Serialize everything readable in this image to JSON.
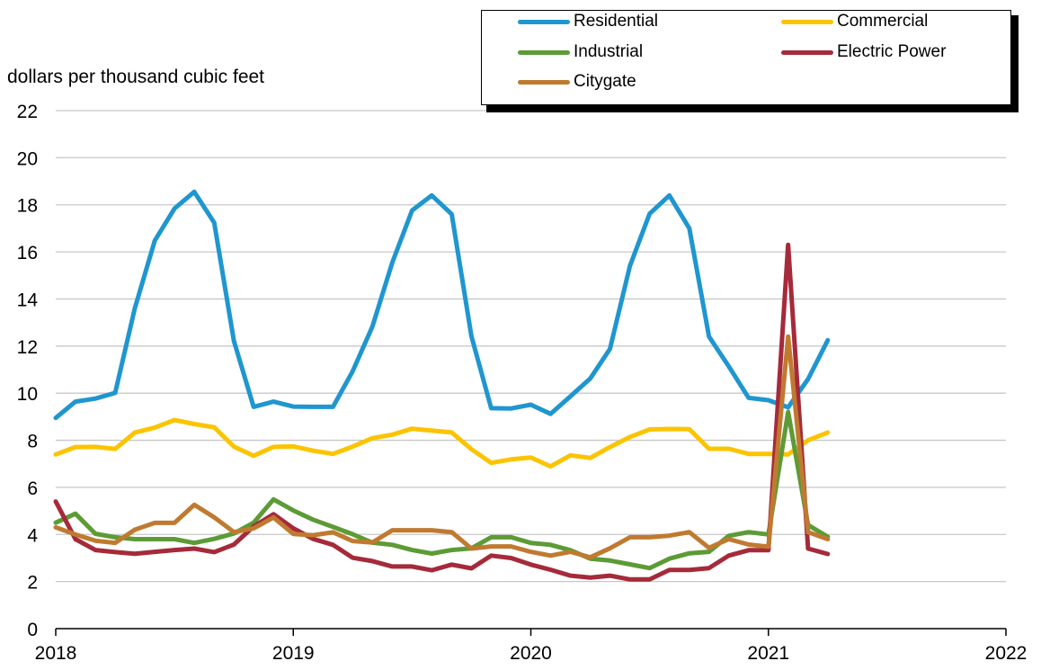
{
  "chart_data": {
    "type": "line",
    "ylabel": "dollars per thousand cubic feet",
    "ylim": [
      0,
      22
    ],
    "yticks": [
      0,
      2,
      4,
      6,
      8,
      10,
      12,
      14,
      16,
      18,
      20,
      22
    ],
    "xlim": [
      2018,
      2022
    ],
    "xticks": [
      2018,
      2019,
      2020,
      2021,
      2022
    ],
    "xtick_labels": [
      "2018",
      "2019",
      "2020",
      "2021",
      "2022"
    ],
    "x_unit": "year",
    "grid": "horizontal",
    "legend_position": "top-right",
    "x": [
      2018.0,
      2018.083,
      2018.167,
      2018.25,
      2018.333,
      2018.417,
      2018.5,
      2018.583,
      2018.667,
      2018.75,
      2018.833,
      2018.917,
      2019.0,
      2019.083,
      2019.167,
      2019.25,
      2019.333,
      2019.417,
      2019.5,
      2019.583,
      2019.667,
      2019.75,
      2019.833,
      2019.917,
      2020.0,
      2020.083,
      2020.167,
      2020.25,
      2020.333,
      2020.417,
      2020.5,
      2020.583,
      2020.667,
      2020.75,
      2020.833,
      2020.917,
      2021.0,
      2021.083,
      2021.167,
      2021.25
    ],
    "series": [
      {
        "name": "Residential",
        "color": "#1f96cf",
        "values": [
          8.95,
          9.64,
          9.77,
          10.01,
          13.61,
          16.48,
          17.84,
          18.55,
          17.24,
          12.22,
          9.42,
          9.64,
          9.43,
          9.42,
          9.42,
          10.93,
          12.82,
          15.55,
          17.76,
          18.4,
          17.6,
          12.42,
          9.36,
          9.35,
          9.51,
          9.12,
          9.87,
          10.62,
          11.88,
          15.4,
          17.62,
          18.4,
          17.0,
          12.4,
          11.14,
          9.8,
          9.7,
          9.4,
          10.6,
          12.25
        ]
      },
      {
        "name": "Commercial",
        "color": "#fbc400",
        "values": [
          7.4,
          7.71,
          7.72,
          7.63,
          8.33,
          8.54,
          8.86,
          8.69,
          8.55,
          7.73,
          7.34,
          7.72,
          7.74,
          7.56,
          7.42,
          7.73,
          8.09,
          8.24,
          8.49,
          8.41,
          8.33,
          7.62,
          7.04,
          7.19,
          7.27,
          6.89,
          7.36,
          7.25,
          7.71,
          8.14,
          8.46,
          8.48,
          8.47,
          7.64,
          7.64,
          7.42,
          7.42,
          7.4,
          8.0,
          8.33
        ]
      },
      {
        "name": "Industrial",
        "color": "#5c9b35",
        "values": [
          4.5,
          4.88,
          4.03,
          3.88,
          3.8,
          3.8,
          3.8,
          3.64,
          3.81,
          4.04,
          4.5,
          5.49,
          5.02,
          4.63,
          4.32,
          4.01,
          3.65,
          3.56,
          3.34,
          3.19,
          3.34,
          3.41,
          3.88,
          3.88,
          3.64,
          3.56,
          3.33,
          2.97,
          2.89,
          2.73,
          2.57,
          2.97,
          3.2,
          3.26,
          3.94,
          4.1,
          4.0,
          9.2,
          4.4,
          3.9
        ]
      },
      {
        "name": "Electric Power",
        "color": "#a52a3a",
        "values": [
          5.4,
          3.8,
          3.34,
          3.25,
          3.18,
          3.26,
          3.34,
          3.4,
          3.25,
          3.57,
          4.34,
          4.86,
          4.26,
          3.81,
          3.56,
          3.01,
          2.87,
          2.64,
          2.64,
          2.48,
          2.72,
          2.56,
          3.1,
          3.0,
          2.72,
          2.5,
          2.25,
          2.17,
          2.25,
          2.09,
          2.09,
          2.49,
          2.49,
          2.57,
          3.1,
          3.33,
          3.33,
          16.3,
          3.4,
          3.17
        ]
      },
      {
        "name": "Citygate",
        "color": "#c07a30",
        "values": [
          4.3,
          4.0,
          3.73,
          3.64,
          4.2,
          4.49,
          4.49,
          5.26,
          4.73,
          4.1,
          4.26,
          4.72,
          4.02,
          3.97,
          4.09,
          3.72,
          3.66,
          4.18,
          4.18,
          4.18,
          4.1,
          3.4,
          3.49,
          3.49,
          3.26,
          3.1,
          3.26,
          3.03,
          3.41,
          3.88,
          3.88,
          3.95,
          4.1,
          3.43,
          3.8,
          3.57,
          3.48,
          12.4,
          4.1,
          3.8
        ]
      }
    ]
  }
}
